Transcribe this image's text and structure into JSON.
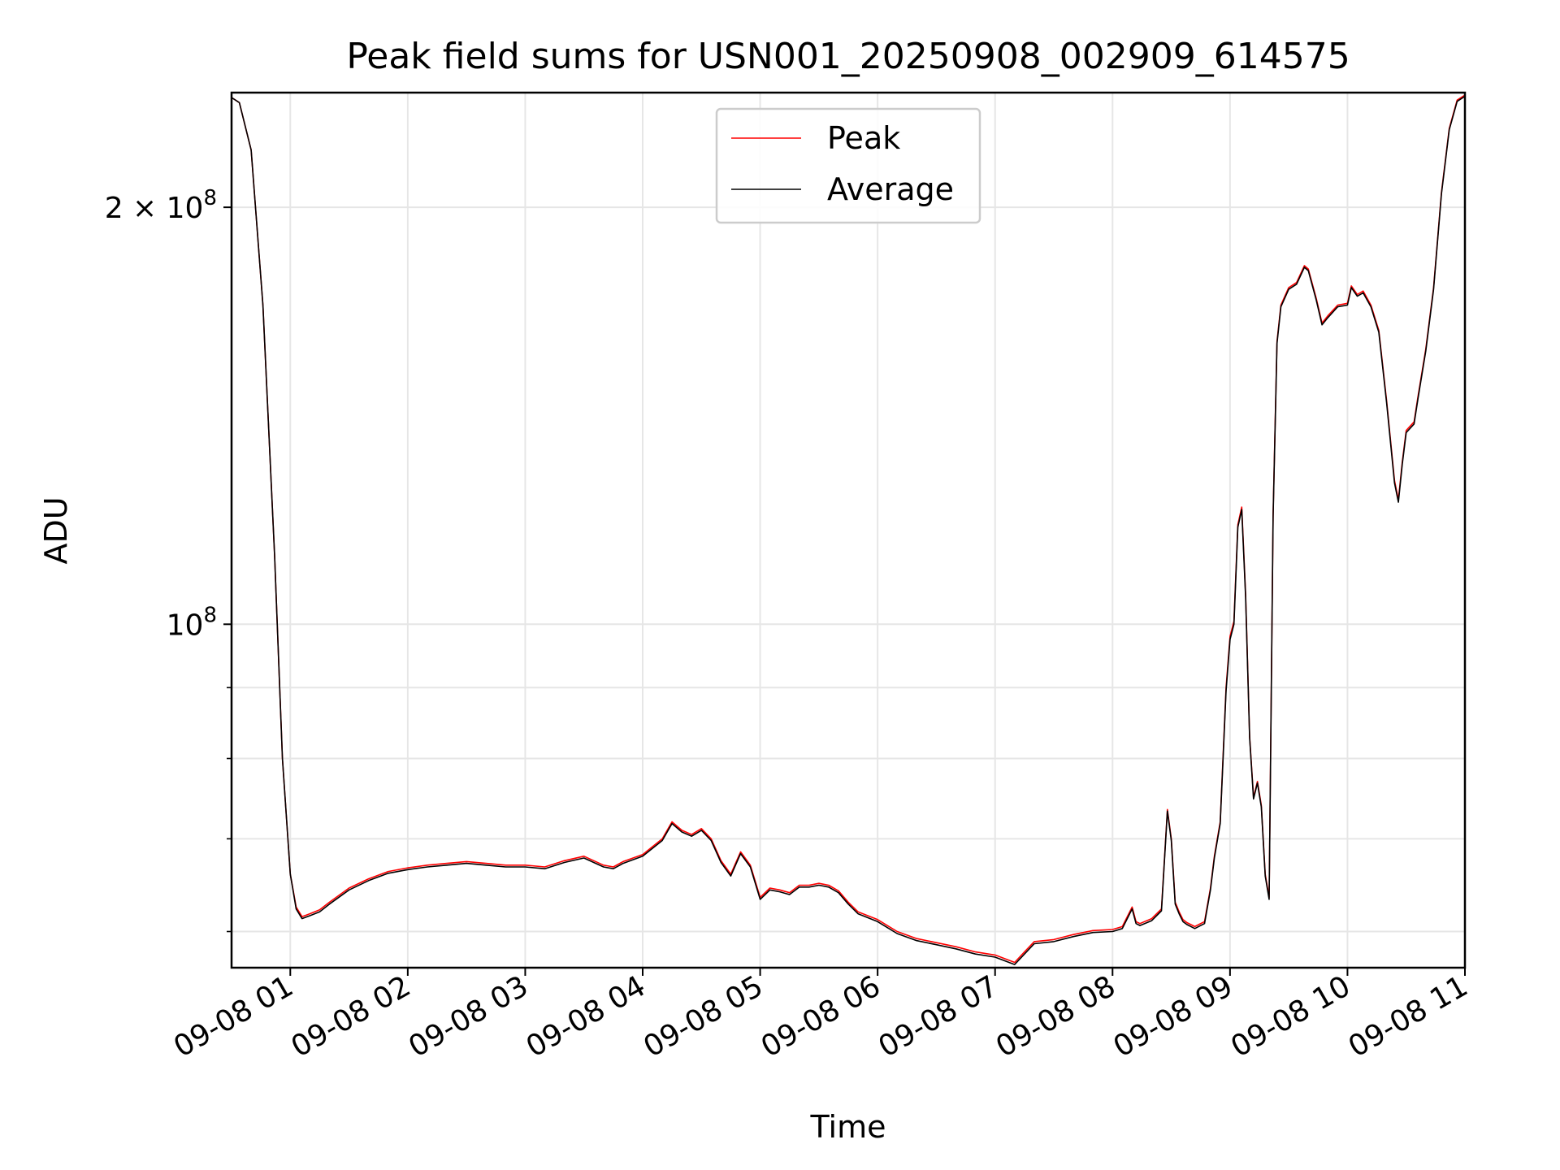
{
  "chart_data": {
    "type": "line",
    "title": "Peak field sums for USN001_20250908_002909_614575",
    "xlabel": "Time",
    "ylabel": "ADU",
    "xlim": [
      "2025-09-08 00:30",
      "2025-09-08 11:00"
    ],
    "ylim": [
      56500000,
      242000000
    ],
    "yscale": "log",
    "grid": true,
    "legend": "upper center",
    "colors": {
      "Peak": "#ff0000",
      "Average": "#000000"
    },
    "x_tick_labels": [
      "09-08 01",
      "09-08 02",
      "09-08 03",
      "09-08 04",
      "09-08 05",
      "09-08 06",
      "09-08 07",
      "09-08 08",
      "09-08 09",
      "09-08 10",
      "09-08 11"
    ],
    "x_tick_hours": [
      1,
      2,
      3,
      4,
      5,
      6,
      7,
      8,
      9,
      10,
      11
    ],
    "y_major_ticks": [
      {
        "value": 100000000,
        "base": "10",
        "exp": "8"
      },
      {
        "value": 200000000,
        "base": "2 × 10",
        "exp": "8"
      }
    ],
    "y_minor_ticks": [
      60000000,
      70000000,
      80000000,
      90000000
    ],
    "series": [
      {
        "name": "Peak",
        "x": [
          "00:30",
          "00:34",
          "00:40",
          "00:46",
          "00:52",
          "00:56",
          "01:00",
          "01:03",
          "01:06",
          "01:10",
          "01:15",
          "01:20",
          "01:30",
          "01:40",
          "01:50",
          "02:00",
          "02:10",
          "02:20",
          "02:30",
          "02:40",
          "02:50",
          "03:00",
          "03:10",
          "03:20",
          "03:30",
          "03:40",
          "03:45",
          "03:50",
          "04:00",
          "04:10",
          "04:15",
          "04:20",
          "04:25",
          "04:30",
          "04:35",
          "04:40",
          "04:45",
          "04:50",
          "04:55",
          "05:00",
          "05:05",
          "05:10",
          "05:15",
          "05:20",
          "05:25",
          "05:30",
          "05:35",
          "05:40",
          "05:45",
          "05:50",
          "06:00",
          "06:10",
          "06:20",
          "06:30",
          "06:40",
          "06:50",
          "07:00",
          "07:10",
          "07:15",
          "07:20",
          "07:30",
          "07:40",
          "07:50",
          "08:00",
          "08:05",
          "08:10",
          "08:12",
          "08:14",
          "08:20",
          "08:25",
          "08:28",
          "08:30",
          "08:32",
          "08:34",
          "08:36",
          "08:38",
          "08:42",
          "08:47",
          "08:50",
          "08:52",
          "08:55",
          "08:58",
          "09:00",
          "09:02",
          "09:04",
          "09:06",
          "09:08",
          "09:10",
          "09:12",
          "09:14",
          "09:16",
          "09:18",
          "09:20",
          "09:22",
          "09:24",
          "09:26",
          "09:30",
          "09:34",
          "09:38",
          "09:40",
          "09:44",
          "09:47",
          "09:50",
          "09:55",
          "10:00",
          "10:02",
          "10:05",
          "10:08",
          "10:12",
          "10:16",
          "10:20",
          "10:24",
          "10:26",
          "10:28",
          "10:30",
          "10:34",
          "10:36",
          "10:40",
          "10:44",
          "10:48",
          "10:52",
          "10:56",
          "11:00"
        ],
        "values": [
          240000000,
          238000000,
          220000000,
          170000000,
          112000000,
          80000000,
          66000000,
          62500000,
          61500000,
          61800000,
          62200000,
          63000000,
          64500000,
          65500000,
          66300000,
          66700000,
          67000000,
          67200000,
          67400000,
          67200000,
          67000000,
          67000000,
          66800000,
          67500000,
          68000000,
          67000000,
          66800000,
          67400000,
          68200000,
          70000000,
          72000000,
          71000000,
          70500000,
          71200000,
          70000000,
          67500000,
          66000000,
          68500000,
          67000000,
          63500000,
          64500000,
          64300000,
          64000000,
          64800000,
          64800000,
          65000000,
          64800000,
          64200000,
          63000000,
          62000000,
          61200000,
          60000000,
          59300000,
          58900000,
          58500000,
          58000000,
          57700000,
          57000000,
          58000000,
          59000000,
          59200000,
          59700000,
          60100000,
          60200000,
          60500000,
          62500000,
          61000000,
          60800000,
          61300000,
          62300000,
          73500000,
          70000000,
          63000000,
          62000000,
          61200000,
          60900000,
          60500000,
          61000000,
          64500000,
          68000000,
          72000000,
          90000000,
          98000000,
          100500000,
          118000000,
          121500000,
          105000000,
          83000000,
          75000000,
          77000000,
          74000000,
          66000000,
          63500000,
          120000000,
          160000000,
          170000000,
          175000000,
          176500000,
          181500000,
          180500000,
          172000000,
          165000000,
          167000000,
          170000000,
          170500000,
          175500000,
          173000000,
          174000000,
          170000000,
          163000000,
          145000000,
          127000000,
          123000000,
          131000000,
          138000000,
          140000000,
          146000000,
          158000000,
          175000000,
          205000000,
          228000000,
          239000000,
          241000000
        ]
      },
      {
        "name": "Average",
        "x": [
          "00:30",
          "00:34",
          "00:40",
          "00:46",
          "00:52",
          "00:56",
          "01:00",
          "01:03",
          "01:06",
          "01:10",
          "01:15",
          "01:20",
          "01:30",
          "01:40",
          "01:50",
          "02:00",
          "02:10",
          "02:20",
          "02:30",
          "02:40",
          "02:50",
          "03:00",
          "03:10",
          "03:20",
          "03:30",
          "03:40",
          "03:45",
          "03:50",
          "04:00",
          "04:10",
          "04:15",
          "04:20",
          "04:25",
          "04:30",
          "04:35",
          "04:40",
          "04:45",
          "04:50",
          "04:55",
          "05:00",
          "05:05",
          "05:10",
          "05:15",
          "05:20",
          "05:25",
          "05:30",
          "05:35",
          "05:40",
          "05:45",
          "05:50",
          "06:00",
          "06:10",
          "06:20",
          "06:30",
          "06:40",
          "06:50",
          "07:00",
          "07:10",
          "07:15",
          "07:20",
          "07:30",
          "07:40",
          "07:50",
          "08:00",
          "08:05",
          "08:10",
          "08:12",
          "08:14",
          "08:20",
          "08:25",
          "08:28",
          "08:30",
          "08:32",
          "08:34",
          "08:36",
          "08:38",
          "08:42",
          "08:47",
          "08:50",
          "08:52",
          "08:55",
          "08:58",
          "09:00",
          "09:02",
          "09:04",
          "09:06",
          "09:08",
          "09:10",
          "09:12",
          "09:14",
          "09:16",
          "09:18",
          "09:20",
          "09:22",
          "09:24",
          "09:26",
          "09:30",
          "09:34",
          "09:38",
          "09:40",
          "09:44",
          "09:47",
          "09:50",
          "09:55",
          "10:00",
          "10:02",
          "10:05",
          "10:08",
          "10:12",
          "10:16",
          "10:20",
          "10:24",
          "10:26",
          "10:28",
          "10:30",
          "10:34",
          "10:36",
          "10:40",
          "10:44",
          "10:48",
          "10:52",
          "10:56",
          "11:00"
        ],
        "values": [
          240000000,
          238000000,
          220000000,
          170000000,
          112000000,
          80000000,
          66000000,
          62300000,
          61300000,
          61600000,
          62000000,
          62800000,
          64300000,
          65300000,
          66100000,
          66500000,
          66800000,
          67000000,
          67200000,
          67000000,
          66800000,
          66800000,
          66600000,
          67300000,
          67800000,
          66800000,
          66600000,
          67200000,
          68000000,
          69800000,
          71800000,
          70800000,
          70300000,
          71000000,
          69800000,
          67300000,
          65800000,
          68300000,
          66800000,
          63300000,
          64300000,
          64100000,
          63800000,
          64600000,
          64600000,
          64800000,
          64600000,
          64000000,
          62800000,
          61800000,
          61000000,
          59800000,
          59100000,
          58700000,
          58300000,
          57800000,
          57500000,
          56800000,
          57800000,
          58800000,
          59000000,
          59500000,
          59900000,
          60000000,
          60300000,
          62300000,
          60800000,
          60600000,
          61100000,
          62100000,
          73300000,
          69800000,
          62800000,
          61800000,
          61000000,
          60700000,
          60300000,
          60800000,
          64300000,
          67800000,
          71800000,
          89500000,
          97500000,
          100000000,
          117500000,
          121000000,
          104500000,
          82800000,
          74800000,
          76800000,
          73800000,
          65800000,
          63300000,
          119500000,
          159500000,
          169500000,
          174500000,
          176000000,
          181000000,
          180000000,
          171500000,
          164500000,
          166500000,
          169500000,
          170000000,
          175000000,
          172500000,
          173500000,
          169500000,
          162500000,
          144500000,
          126500000,
          122500000,
          130500000,
          137500000,
          139500000,
          145500000,
          157500000,
          174500000,
          204500000,
          227500000,
          238500000,
          240500000
        ]
      }
    ]
  }
}
